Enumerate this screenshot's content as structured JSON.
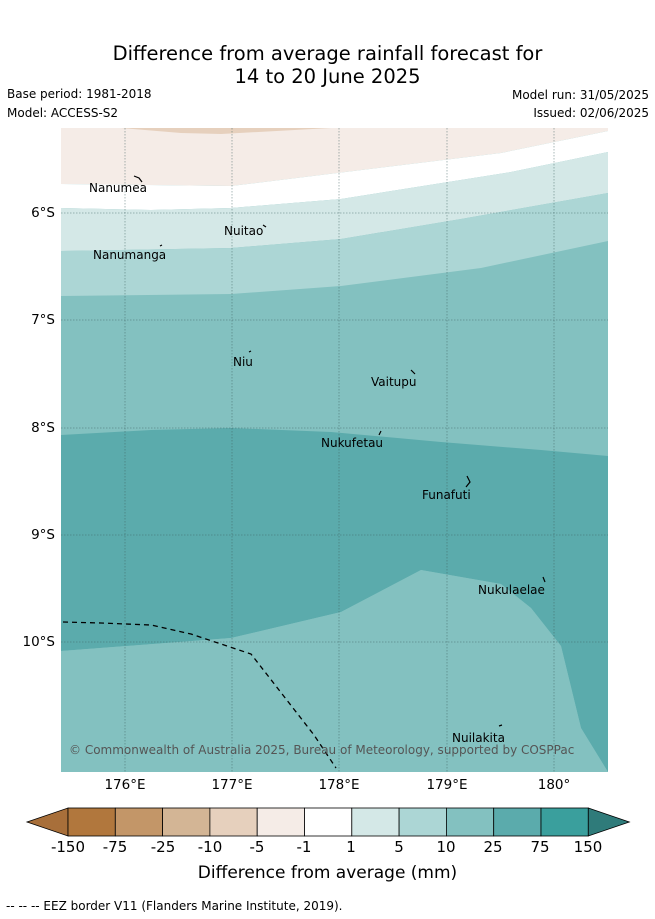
{
  "header": {
    "title_line1": "Difference from average rainfall forecast for",
    "title_line2": "14 to 20 June 2025",
    "base_period": "Base period: 1981-2018",
    "model": "Model: ACCESS-S2",
    "model_run": "Model run: 31/05/2025",
    "issued": "Issued: 02/06/2025"
  },
  "map": {
    "lon_labels": [
      "176°E",
      "177°E",
      "178°E",
      "179°E",
      "180°"
    ],
    "lat_labels": [
      "6°S",
      "7°S",
      "8°S",
      "9°S",
      "10°S"
    ],
    "places": {
      "nanumea": "Nanumea",
      "nuitao": "Nuitao",
      "nanumanga": "Nanumanga",
      "niu": "Niu",
      "vaitupu": "Vaitupu",
      "nukufetau": "Nukufetau",
      "funafuti": "Funafuti",
      "nukulaelae": "Nukulaelae",
      "nuilakita": "Nuilakita"
    },
    "copyright": "© Commonwealth of Australia 2025, Bureau of Meteorology, supported by COSPPac",
    "band_colors": {
      "minus10_minus5": "#e6d0bd",
      "minus5_minus1": "#f5ece7",
      "minus1_1": "#ffffff",
      "1_5": "#d4e8e7",
      "5_10": "#acd6d5",
      "10_25": "#83c1c0",
      "25_75": "#5babac",
      "75_150": "#3a9f9d"
    }
  },
  "colorbar": {
    "ticks": [
      "-150",
      "-75",
      "-25",
      "-10",
      "-5",
      "-1",
      "1",
      "5",
      "10",
      "25",
      "75",
      "150"
    ],
    "colors": [
      "#a86f3a",
      "#b1773d",
      "#c39668",
      "#d3b595",
      "#e6d0bd",
      "#f5ece7",
      "#ffffff",
      "#d4e8e7",
      "#acd6d5",
      "#83c1c0",
      "#5babac",
      "#3a9f9d",
      "#2f7b7a"
    ],
    "label": "Difference from average (mm)"
  },
  "footnote": "--  --  -- EEZ border V11 (Flanders Marine Institute, 2019)."
}
